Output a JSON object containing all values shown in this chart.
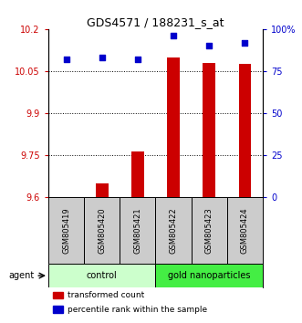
{
  "title": "GDS4571 / 188231_s_at",
  "samples": [
    "GSM805419",
    "GSM805420",
    "GSM805421",
    "GSM805422",
    "GSM805423",
    "GSM805424"
  ],
  "transformed_counts": [
    9.601,
    9.648,
    9.762,
    10.1,
    10.08,
    10.075
  ],
  "percentile_ranks": [
    82,
    83,
    82,
    96,
    90,
    92
  ],
  "ylim_left": [
    9.6,
    10.2
  ],
  "ylim_right": [
    0,
    100
  ],
  "yticks_left": [
    9.6,
    9.75,
    9.9,
    10.05,
    10.2
  ],
  "ytick_labels_left": [
    "9.6",
    "9.75",
    "9.9",
    "10.05",
    "10.2"
  ],
  "yticks_right": [
    0,
    25,
    50,
    75,
    100
  ],
  "ytick_labels_right": [
    "0",
    "25",
    "50",
    "75",
    "100%"
  ],
  "groups": [
    {
      "label": "control",
      "indices": [
        0,
        1,
        2
      ],
      "color": "#ccffcc"
    },
    {
      "label": "gold nanoparticles",
      "indices": [
        3,
        4,
        5
      ],
      "color": "#44ee44"
    }
  ],
  "bar_color": "#cc0000",
  "dot_color": "#0000cc",
  "bar_width": 0.35,
  "agent_label": "agent",
  "legend_items": [
    {
      "color": "#cc0000",
      "label": "transformed count"
    },
    {
      "color": "#0000cc",
      "label": "percentile rank within the sample"
    }
  ],
  "background_plot": "#ffffff",
  "background_sample": "#cccccc",
  "left_tick_color": "#cc0000",
  "right_tick_color": "#0000cc"
}
